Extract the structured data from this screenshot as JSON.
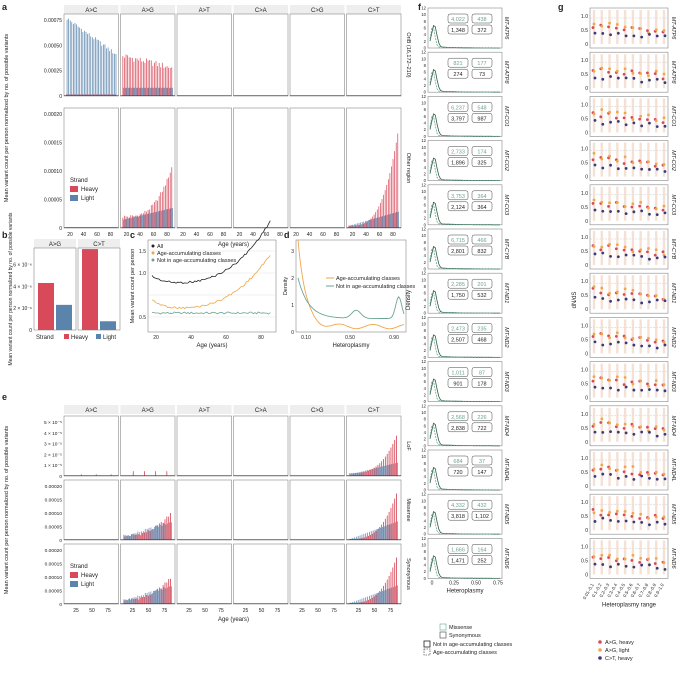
{
  "colors": {
    "heavy": "#d84a5a",
    "light": "#5b84ad",
    "all": "#222222",
    "age": "#f0a64a",
    "notage": "#6ba58f",
    "grid": "#dddddd",
    "frame": "#888888"
  },
  "panel_letters": [
    "a",
    "b",
    "c",
    "d",
    "e",
    "f",
    "g"
  ],
  "a": {
    "columns": [
      "A>C",
      "A>G",
      "A>T",
      "C>A",
      "C>G",
      "C>T"
    ],
    "rows": [
      "OriB (16,172–210)",
      "Other region"
    ],
    "ylabel": "Mean variant count per person normalized by no. of possible variants",
    "xlabel": "Age (years)",
    "xticks": [
      "20",
      "40",
      "60",
      "80"
    ],
    "yticks_top": [
      "0",
      "0.00025",
      "0.00050",
      "0.00075"
    ],
    "yticks_bottom": [
      "0",
      "0.00005",
      "0.00010",
      "0.00015",
      "0.00020"
    ],
    "legend": {
      "title": "Strand",
      "items": [
        "Heavy",
        "Light"
      ]
    }
  },
  "b": {
    "columns": [
      "A>G",
      "C>T"
    ],
    "ylabel": "Mean variant count per person normalized by no. of possible variants",
    "yticks": [
      "0",
      "2 × 10⁻⁶",
      "4 × 10⁻⁶",
      "6 × 10⁻⁶"
    ],
    "xlabel": "Strand",
    "xcats": [
      "Heavy",
      "Light"
    ],
    "values": {
      "A>G": [
        4.3e-06,
        2.3e-06
      ],
      "C>T": [
        7.4e-06,
        8e-07
      ]
    }
  },
  "c": {
    "ylabel": "Mean variant count per person",
    "xlabel": "Age (years)",
    "xticks": [
      "20",
      "40",
      "60",
      "80"
    ],
    "yticks": [
      "0.5",
      "1.0",
      "1.5"
    ],
    "legend": [
      "All",
      "Age-accumulating classes",
      "Not in age-accumulating classes"
    ]
  },
  "d": {
    "ylabel": "Density",
    "xlabel": "Heteroplasmy",
    "xticks": [
      "0.10",
      "0.50",
      "0.90"
    ],
    "yticks": [
      "0",
      "1",
      "2",
      "3"
    ],
    "legend": [
      "Age-accumulating classes",
      "Not in age-accumulating classes"
    ]
  },
  "e": {
    "columns": [
      "A>C",
      "A>G",
      "A>T",
      "C>A",
      "C>G",
      "C>T"
    ],
    "rows": [
      "LoF",
      "Missense",
      "Synonymous"
    ],
    "ylabel": "Mean variant count per person normalized by no. of possible variants",
    "xlabel": "Age (years)",
    "xticks": [
      "25",
      "50",
      "75"
    ],
    "yticks_lof": [
      "0",
      "1 × 10⁻⁵",
      "2 × 10⁻⁵",
      "3 × 10⁻⁵",
      "4 × 10⁻⁵",
      "5 × 10⁻⁵"
    ],
    "yticks_other": [
      "0",
      "0.00005",
      "0.00010",
      "0.00015",
      "0.00020"
    ],
    "legend": {
      "title": "Strand",
      "items": [
        "Heavy",
        "Light"
      ]
    }
  },
  "f": {
    "ylabel": "Density",
    "xlabel": "Heteroplasmy",
    "xticks": [
      "0",
      "0.25",
      "0.50",
      "0.75"
    ],
    "yticks": [
      "0",
      "2",
      "4",
      "6",
      "8",
      "10",
      "12"
    ],
    "genes": [
      {
        "name": "MT-ATP6",
        "c": [
          "4,022",
          "438",
          "1,348",
          "372"
        ]
      },
      {
        "name": "MT-ATP8",
        "c": [
          "821",
          "177",
          "274",
          "73"
        ]
      },
      {
        "name": "MT-CO1",
        "c": [
          "6,237",
          "548",
          "3,797",
          "987"
        ]
      },
      {
        "name": "MT-CO2",
        "c": [
          "2,733",
          "174",
          "1,896",
          "325"
        ]
      },
      {
        "name": "MT-CO3",
        "c": [
          "3,753",
          "364",
          "2,124",
          "364"
        ]
      },
      {
        "name": "MT-CYB",
        "c": [
          "6,715",
          "466",
          "2,801",
          "832"
        ]
      },
      {
        "name": "MT-ND1",
        "c": [
          "2,285",
          "201",
          "1,750",
          "532"
        ]
      },
      {
        "name": "MT-ND2",
        "c": [
          "2,473",
          "235",
          "2,507",
          "468"
        ]
      },
      {
        "name": "MT-ND3",
        "c": [
          "1,011",
          "87",
          "901",
          "178"
        ]
      },
      {
        "name": "MT-ND4",
        "c": [
          "2,568",
          "226",
          "2,838",
          "722"
        ]
      },
      {
        "name": "MT-ND4L",
        "c": [
          "684",
          "37",
          "720",
          "147"
        ]
      },
      {
        "name": "MT-ND5",
        "c": [
          "4,332",
          "432",
          "3,818",
          "1,102"
        ]
      },
      {
        "name": "MT-ND6",
        "c": [
          "1,666",
          "164",
          "1,471",
          "252"
        ]
      }
    ],
    "legend": [
      "Missense",
      "Synonymous",
      "Not in age-accumulating classes",
      "Age-accumulating classes"
    ]
  },
  "g": {
    "ylabel": "dN/dS",
    "xlabel": "Heteroplasmy range",
    "yticks": [
      "0",
      "0.5",
      "1.0"
    ],
    "xcats": [
      "0.01–0.1",
      "0.1–0.2",
      "0.2–0.3",
      "0.3–0.4",
      "0.4–0.5",
      "0.5–0.6",
      "0.6–0.7",
      "0.7–0.8",
      "0.8–0.9",
      "0.9–1.0"
    ],
    "legend": [
      "A>G, heavy",
      "A>G, light",
      "C>T, heavy"
    ],
    "legend_colors": [
      "#d84a5a",
      "#f0a64a",
      "#3a3a7a"
    ]
  }
}
